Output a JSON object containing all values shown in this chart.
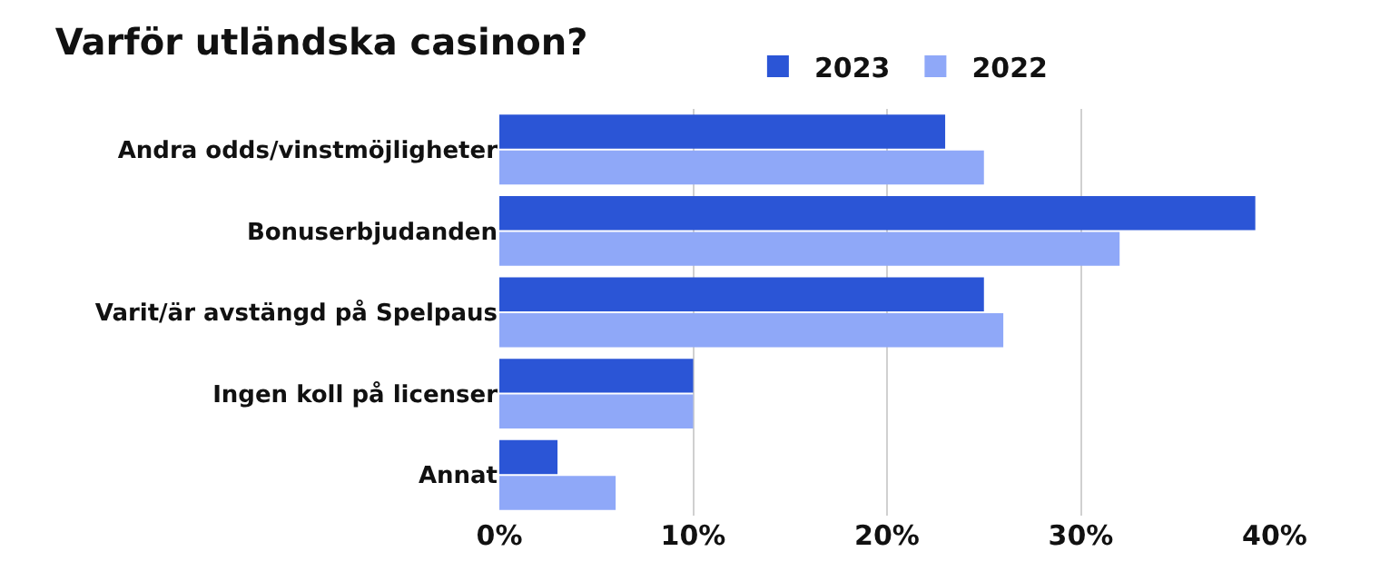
{
  "chart_data": {
    "type": "bar",
    "orientation": "horizontal",
    "title": "Varför utländska casinon?",
    "categories": [
      "Andra odds/vinstmöjligheter",
      "Bonuserbjudanden",
      "Varit/är avstängd på Spelpaus",
      "Ingen koll på licenser",
      "Annat"
    ],
    "series": [
      {
        "name": "2023",
        "color": "#2b55d6",
        "values": [
          23,
          39,
          25,
          10,
          3
        ]
      },
      {
        "name": "2022",
        "color": "#8fa8f8",
        "values": [
          25,
          32,
          26,
          10,
          6
        ]
      }
    ],
    "xlim": [
      0,
      40
    ],
    "xticks": [
      {
        "value": 0,
        "label": "0%"
      },
      {
        "value": 10,
        "label": "10%"
      },
      {
        "value": 20,
        "label": "20%"
      },
      {
        "value": 30,
        "label": "30%"
      },
      {
        "value": 40,
        "label": "40%"
      }
    ],
    "grid": "x",
    "legend": "top right"
  }
}
